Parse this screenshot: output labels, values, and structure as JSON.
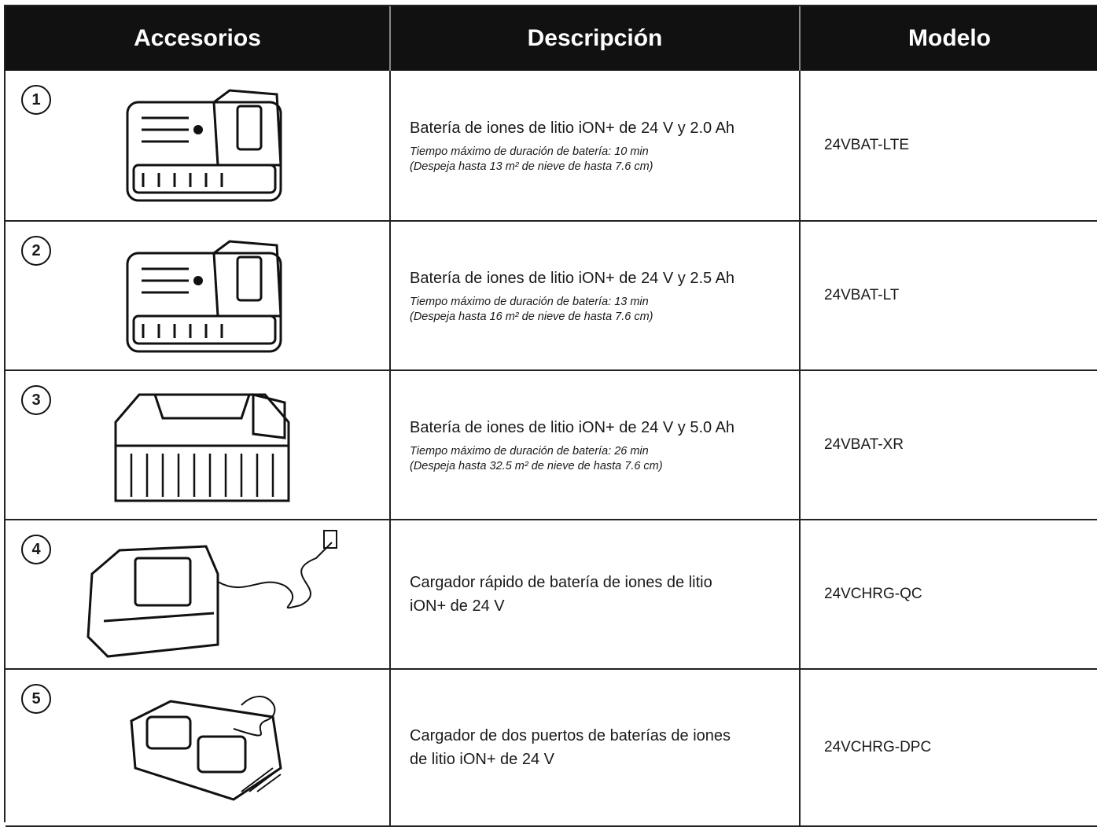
{
  "table": {
    "headers": [
      "Accesorios",
      "Descripción",
      "Modelo"
    ],
    "rows": [
      {
        "number": "1",
        "description": [
          "Batería de iones de litio iON+ de 24 V y 2.0 Ah"
        ],
        "notes": [
          "Tiempo máximo de duración de batería: 10 min",
          "(Despeja hasta 13 m² de nieve de hasta 7.6 cm)"
        ],
        "model": "24VBAT-LTE"
      },
      {
        "number": "2",
        "description": [
          "Batería de iones de litio iON+ de 24 V y 2.5 Ah"
        ],
        "notes": [
          "Tiempo máximo de duración de batería: 13 min",
          "(Despeja hasta 16 m² de nieve de hasta 7.6 cm)"
        ],
        "model": "24VBAT-LT"
      },
      {
        "number": "3",
        "description": [
          "Batería de iones de litio iON+ de 24 V y 5.0 Ah"
        ],
        "notes": [
          "Tiempo máximo de duración de batería: 26 min",
          "(Despeja hasta 32.5 m² de nieve de hasta 7.6 cm)"
        ],
        "model": "24VBAT-XR"
      },
      {
        "number": "4",
        "description": [
          "Cargador rápido de batería de iones de litio",
          "iON+ de 24 V"
        ],
        "notes": [],
        "model": "24VCHRG-QC"
      },
      {
        "number": "5",
        "description": [
          "Cargador de dos puertos de baterías de iones",
          "de litio iON+ de 24 V"
        ],
        "notes": [],
        "model": "24VCHRG-DPC"
      }
    ]
  }
}
